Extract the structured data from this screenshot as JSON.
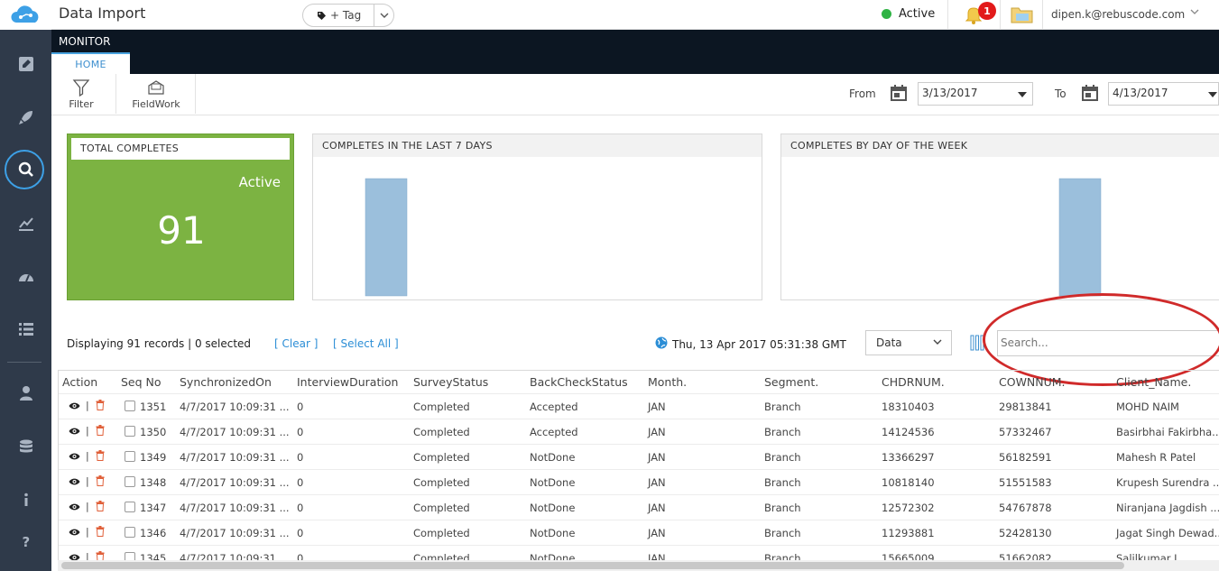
{
  "app": {
    "title": "Data Import"
  },
  "topbar": {
    "tag_label": "+ Tag",
    "status_text": "Active",
    "notification_count": "1",
    "user_email": "dipen.k@rebuscode.com"
  },
  "monitor": {
    "title": "MONITOR",
    "tab_home": "HOME"
  },
  "ribbon": {
    "filter_label": "Filter",
    "fieldwork_label": "FieldWork",
    "from_label": "From",
    "from_date": "3/13/2017",
    "to_label": "To",
    "to_date": "4/13/2017"
  },
  "cards": {
    "total": {
      "header": "TOTAL COMPLETES",
      "status": "Active",
      "value": "91"
    },
    "last7": {
      "header": "COMPLETES IN THE LAST 7 DAYS"
    },
    "byday": {
      "header": "COMPLETES BY DAY OF THE WEEK"
    }
  },
  "chart_data": [
    {
      "type": "bar",
      "title": "COMPLETES IN THE LAST 7 DAYS",
      "values": [
        91
      ]
    },
    {
      "type": "bar",
      "title": "COMPLETES BY DAY OF THE WEEK",
      "values": [
        91
      ]
    }
  ],
  "list": {
    "display_text": "Displaying 91 records | 0 selected",
    "clear_label": "[ Clear ]",
    "select_all_label": "[ Select All ]",
    "timestamp": "Thu, 13 Apr 2017 05:31:38 GMT",
    "view_select": "Data",
    "search_placeholder": "Search..."
  },
  "table": {
    "columns": [
      "Action",
      "Seq No",
      "SynchronizedOn",
      "InterviewDuration",
      "SurveyStatus",
      "BackCheckStatus",
      "Month.",
      "Segment.",
      "CHDRNUM.",
      "COWNNUM.",
      "Client_Name."
    ],
    "rows": [
      [
        "1351",
        "4/7/2017 10:09:31 ...",
        "0",
        "Completed",
        "Accepted",
        "JAN",
        "Branch",
        "18310403",
        "29813841",
        "MOHD NAIM"
      ],
      [
        "1350",
        "4/7/2017 10:09:31 ...",
        "0",
        "Completed",
        "Accepted",
        "JAN",
        "Branch",
        "14124536",
        "57332467",
        "Basirbhai Fakirbha..."
      ],
      [
        "1349",
        "4/7/2017 10:09:31 ...",
        "0",
        "Completed",
        "NotDone",
        "JAN",
        "Branch",
        "13366297",
        "56182591",
        "Mahesh R Patel"
      ],
      [
        "1348",
        "4/7/2017 10:09:31 ...",
        "0",
        "Completed",
        "NotDone",
        "JAN",
        "Branch",
        "10818140",
        "51551583",
        "Krupesh Surendra ..."
      ],
      [
        "1347",
        "4/7/2017 10:09:31 ...",
        "0",
        "Completed",
        "NotDone",
        "JAN",
        "Branch",
        "12572302",
        "54767878",
        "Niranjana Jagdish ..."
      ],
      [
        "1346",
        "4/7/2017 10:09:31 ...",
        "0",
        "Completed",
        "NotDone",
        "JAN",
        "Branch",
        "11293881",
        "52428130",
        "Jagat Singh Dewad..."
      ],
      [
        "1345",
        "4/7/2017 10:09:31 ...",
        "0",
        "Completed",
        "NotDone",
        "JAN",
        "Branch",
        "15665009",
        "51662082",
        "Salilkumar J"
      ]
    ]
  },
  "colors": {
    "accent": "#2c8ed6",
    "green": "#7cb342",
    "sidebar": "#2f3a4a",
    "bar": "#9bbfdc",
    "highlight": "#d02a2a"
  }
}
